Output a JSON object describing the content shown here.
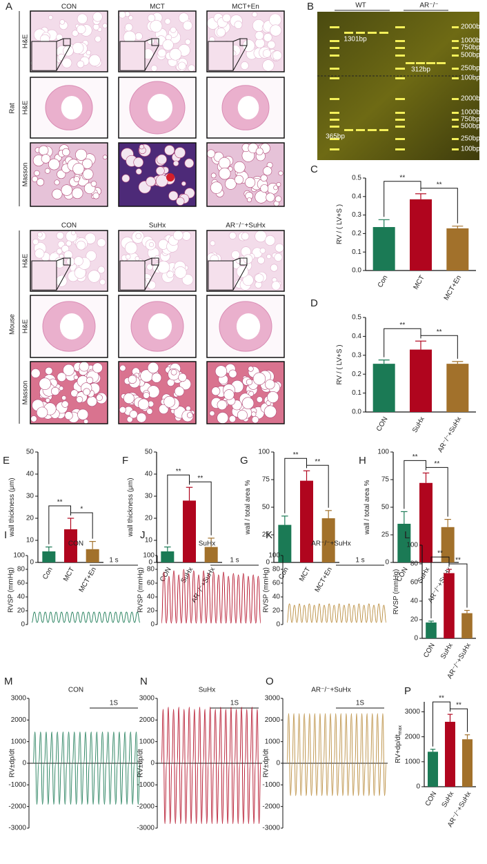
{
  "histology": {
    "panel": "A",
    "rat": {
      "name": "Rat",
      "groups": [
        "CON",
        "MCT",
        "MCT+En"
      ],
      "rows": [
        "H&E",
        "H&E",
        "Masson"
      ]
    },
    "mouse": {
      "name": "Mouse",
      "groups": [
        "CON",
        "SuHx",
        "AR⁻/⁻+SuHx"
      ],
      "rows": [
        "H&E",
        "H&E",
        "Masson"
      ]
    }
  },
  "gel": {
    "panel": "B",
    "groups": [
      "WT",
      "AR⁻/⁻"
    ],
    "bands": [
      "1301bp",
      "312bp",
      "365bp"
    ],
    "ladder_top": [
      "2000bp",
      "1000bp",
      "750bp",
      "500bp",
      "250bp",
      "100bp"
    ],
    "ladder_bottom": [
      "2000bp",
      "1000bp",
      "750bp",
      "500bp",
      "250bp",
      "100bp"
    ]
  },
  "chart_data": [
    {
      "type": "bar",
      "panel": "C",
      "ylabel": "RV / ( LV+S )",
      "categories": [
        "Con",
        "MCT",
        "MCT+En"
      ],
      "values": [
        0.235,
        0.385,
        0.228
      ],
      "errors": [
        0.04,
        0.03,
        0.012
      ],
      "colors": [
        "#1b7a55",
        "#b0051e",
        "#a2712b"
      ],
      "ylim": [
        0,
        0.5
      ],
      "yticks": [
        {
          "value": 0,
          "label": "0.0"
        },
        0.1,
        0.2,
        0.3,
        0.4,
        0.5
      ],
      "comparisons": [
        {
          "label": "**",
          "groups": [
            "Con",
            "MCT"
          ]
        },
        {
          "label": "**",
          "groups": [
            "MCT",
            "MCT+En"
          ]
        }
      ]
    },
    {
      "type": "bar",
      "panel": "D",
      "ylabel": "RV / ( LV+S )",
      "categories": [
        "CON",
        "SuHx",
        "AR⁻/⁻+SuHx"
      ],
      "values": [
        0.255,
        0.33,
        0.255
      ],
      "errors": [
        0.02,
        0.045,
        0.012
      ],
      "colors": [
        "#1b7a55",
        "#b0051e",
        "#a2712b"
      ],
      "ylim": [
        0,
        0.5
      ],
      "yticks": [
        {
          "value": 0,
          "label": "0.0"
        },
        0.1,
        0.2,
        0.3,
        0.4,
        0.5
      ],
      "comparisons": [
        {
          "label": "**",
          "groups": [
            "CON",
            "SuHx"
          ]
        },
        {
          "label": "**",
          "groups": [
            "SuHx",
            "AR⁻/⁻+SuHx"
          ]
        }
      ]
    },
    {
      "type": "bar",
      "panel": "E",
      "ylabel": "wall thickness (μm)",
      "categories": [
        "Con",
        "MCT",
        "MCT+En"
      ],
      "values": [
        5,
        15,
        6
      ],
      "errors": [
        2,
        5,
        3.5
      ],
      "colors": [
        "#1b7a55",
        "#b0051e",
        "#a2712b"
      ],
      "ylim": [
        0,
        50
      ],
      "yticks": [
        0,
        10,
        20,
        30,
        40,
        50
      ],
      "comparisons": [
        {
          "label": "**",
          "groups": [
            "Con",
            "MCT"
          ]
        },
        {
          "label": "*",
          "groups": [
            "MCT",
            "MCT+En"
          ]
        }
      ]
    },
    {
      "type": "bar",
      "panel": "F",
      "ylabel": "wall thickness (μm)",
      "categories": [
        "CON",
        "SuHx",
        "AR⁻/⁻+SuHx"
      ],
      "values": [
        5,
        28,
        7
      ],
      "errors": [
        2,
        6,
        4
      ],
      "colors": [
        "#1b7a55",
        "#b0051e",
        "#a2712b"
      ],
      "ylim": [
        0,
        50
      ],
      "yticks": [
        0,
        10,
        20,
        30,
        40,
        50
      ],
      "comparisons": [
        {
          "label": "**",
          "groups": [
            "CON",
            "SuHx"
          ]
        },
        {
          "label": "**",
          "groups": [
            "SuHx",
            "AR⁻/⁻+SuHx"
          ]
        }
      ]
    },
    {
      "type": "bar",
      "panel": "G",
      "ylabel": "wall / total area %",
      "categories": [
        "Con",
        "MCT",
        "MCT+En"
      ],
      "values": [
        34,
        74,
        40
      ],
      "errors": [
        8,
        9,
        7
      ],
      "colors": [
        "#1b7a55",
        "#b0051e",
        "#a2712b"
      ],
      "ylim": [
        0,
        100
      ],
      "yticks": [
        0,
        25,
        50,
        75,
        100
      ],
      "comparisons": [
        {
          "label": "**",
          "groups": [
            "Con",
            "MCT"
          ]
        },
        {
          "label": "**",
          "groups": [
            "MCT",
            "MCT+En"
          ]
        }
      ]
    },
    {
      "type": "bar",
      "panel": "H",
      "ylabel": "wall / total area %",
      "categories": [
        "CON",
        "SuHx",
        "AR⁻/⁻+SuHx"
      ],
      "values": [
        35,
        72,
        32
      ],
      "errors": [
        11,
        9,
        7
      ],
      "colors": [
        "#1b7a55",
        "#b0051e",
        "#a2712b"
      ],
      "ylim": [
        0,
        100
      ],
      "yticks": [
        0,
        25,
        50,
        75,
        100
      ],
      "comparisons": [
        {
          "label": "**",
          "groups": [
            "CON",
            "SuHx"
          ]
        },
        {
          "label": "**",
          "groups": [
            "SuHx",
            "AR⁻/⁻+SuHx"
          ]
        }
      ]
    },
    {
      "type": "line",
      "panel": "I",
      "title": "CON",
      "ylabel": "RVSP (mmHg)",
      "annotation": "1 s",
      "color": "#1b7a55",
      "ylim": [
        0,
        100
      ],
      "yticks": [
        0,
        20,
        40,
        60,
        80,
        100
      ],
      "values": [
        3,
        18,
        3,
        18,
        3,
        18,
        3,
        18,
        3,
        18,
        3,
        18,
        3,
        18,
        3,
        18,
        3,
        18,
        3,
        18,
        3,
        18,
        3,
        18,
        3,
        18,
        3,
        18,
        3,
        18,
        3,
        18,
        3,
        18,
        3,
        18,
        3,
        18,
        3,
        18,
        3
      ]
    },
    {
      "type": "line",
      "panel": "J",
      "title": "SuHx",
      "ylabel": "RVSP (mmHg)",
      "annotation": "1 s",
      "color": "#b0051e",
      "ylim": [
        0,
        100
      ],
      "yticks": [
        0,
        20,
        40,
        60,
        80,
        100
      ],
      "values": [
        2,
        76,
        2,
        70,
        2,
        78,
        2,
        72,
        2,
        80,
        2,
        74,
        2,
        78,
        2,
        72,
        2,
        78,
        2,
        74,
        2,
        76,
        2,
        72,
        2,
        76,
        2,
        70,
        2,
        74,
        2,
        72,
        2,
        74,
        2,
        70,
        2,
        72,
        2,
        70,
        2
      ]
    },
    {
      "type": "line",
      "panel": "K",
      "title": "AR⁻/⁻+SuHx",
      "ylabel": "RVSP (mmHg)",
      "annotation": "1 s",
      "color": "#b88a3a",
      "ylim": [
        0,
        100
      ],
      "yticks": [
        0,
        20,
        40,
        60,
        80,
        100
      ],
      "values": [
        3,
        30,
        3,
        28,
        3,
        30,
        3,
        28,
        3,
        30,
        3,
        28,
        3,
        30,
        3,
        28,
        3,
        30,
        3,
        28,
        3,
        30,
        3,
        28,
        3,
        30,
        3,
        28,
        3,
        30,
        3,
        28,
        3,
        30,
        3,
        28,
        3,
        30,
        3,
        28,
        3
      ]
    },
    {
      "type": "bar",
      "panel": "L",
      "ylabel": "RVSP (mmHg)",
      "categories": [
        "CON",
        "SuHx",
        "AR⁻/⁻+SuHx"
      ],
      "values": [
        17,
        70,
        27
      ],
      "errors": [
        1.5,
        4,
        3
      ],
      "colors": [
        "#1b7a55",
        "#b0051e",
        "#a2712b"
      ],
      "ylim": [
        0,
        100
      ],
      "yticks": [
        0,
        20,
        40,
        60,
        80,
        100
      ],
      "comparisons": [
        {
          "label": "**",
          "groups": [
            "CON",
            "SuHx"
          ]
        },
        {
          "label": "**",
          "groups": [
            "SuHx",
            "AR⁻/⁻+SuHx"
          ]
        }
      ]
    },
    {
      "type": "line",
      "panel": "M",
      "title": "CON",
      "ylabel": "RV±dp/dt",
      "annotation": "1S",
      "color": "#1b7a55",
      "ylim": [
        -3000,
        3000
      ],
      "yticks": [
        -3000,
        -2000,
        -1000,
        0,
        1000,
        2000,
        3000
      ],
      "values": [
        0,
        1450,
        -1900,
        0,
        1450,
        -1900,
        0,
        1450,
        -1900,
        0,
        1450,
        -1900,
        0,
        1450,
        -1900,
        0,
        1450,
        -1900,
        0,
        1450,
        -1900,
        0,
        1450,
        -1900,
        0,
        1450,
        -1900,
        0,
        1450,
        -1900,
        0,
        1450,
        -1900,
        0,
        1450,
        -1900,
        0,
        1450,
        -1900,
        0,
        1450,
        -1900,
        0,
        1450,
        -1900,
        0,
        1450,
        -1900,
        0,
        1450,
        -1900,
        0,
        1450,
        -1900,
        0,
        1450,
        -1900,
        0
      ]
    },
    {
      "type": "line",
      "panel": "N",
      "title": "SuHx",
      "ylabel": "RV±dp/dt",
      "annotation": "1S",
      "color": "#b0051e",
      "ylim": [
        -3000,
        3000
      ],
      "yticks": [
        -3000,
        -2000,
        -1000,
        0,
        1000,
        2000,
        3000
      ],
      "values": [
        0,
        2500,
        -2800,
        0,
        2600,
        -2800,
        0,
        2500,
        -2800,
        0,
        2600,
        -2800,
        0,
        2500,
        -2800,
        0,
        2600,
        -2800,
        0,
        2500,
        -2800,
        0,
        2600,
        -2800,
        0,
        2500,
        -2800,
        0,
        2600,
        -2800,
        0,
        2500,
        -2800,
        0,
        2600,
        -2800,
        0,
        2500,
        -2800,
        0,
        2600,
        -2800,
        0,
        2500,
        -2800,
        0,
        2600,
        -2800,
        0,
        2500,
        -2800,
        0,
        2600,
        -2800,
        0,
        2500,
        -2800,
        0
      ]
    },
    {
      "type": "line",
      "panel": "O",
      "title": "AR⁻/⁻+SuHx",
      "ylabel": "RV±dp/dt",
      "annotation": "1S",
      "color": "#b88a3a",
      "ylim": [
        -3000,
        3000
      ],
      "yticks": [
        -3000,
        -2000,
        -1000,
        0,
        1000,
        2000,
        3000
      ],
      "values": [
        0,
        2300,
        -1500,
        0,
        2300,
        -1500,
        0,
        2300,
        -1500,
        0,
        2300,
        -1500,
        0,
        2300,
        -1500,
        0,
        2300,
        -1500,
        0,
        2300,
        -1500,
        0,
        2300,
        -1500,
        0,
        2300,
        -1500,
        0,
        2300,
        -1500,
        0,
        2300,
        -1500,
        0,
        2300,
        -1500,
        0,
        2300,
        -1500,
        0,
        2300,
        -1500,
        0,
        2300,
        -1500,
        0,
        2300,
        -1500,
        0,
        2300,
        -1500,
        0,
        2300,
        -1500,
        0,
        2300,
        -1500,
        0
      ]
    },
    {
      "type": "bar",
      "panel": "P",
      "ylabel": "RV+dp/dt",
      "ylabel_sub": "max",
      "categories": [
        "CON",
        "SuHx",
        "AR⁻/⁻+SuHx"
      ],
      "values": [
        1400,
        2600,
        1900
      ],
      "errors": [
        100,
        300,
        180
      ],
      "colors": [
        "#1b7a55",
        "#b0051e",
        "#a2712b"
      ],
      "ylim": [
        0,
        3400
      ],
      "yticks": [
        0,
        1000,
        2000,
        3000
      ],
      "comparisons": [
        {
          "label": "**",
          "groups": [
            "CON",
            "SuHx"
          ]
        },
        {
          "label": "**",
          "groups": [
            "SuHx",
            "AR⁻/⁻+SuHx"
          ]
        }
      ]
    }
  ]
}
